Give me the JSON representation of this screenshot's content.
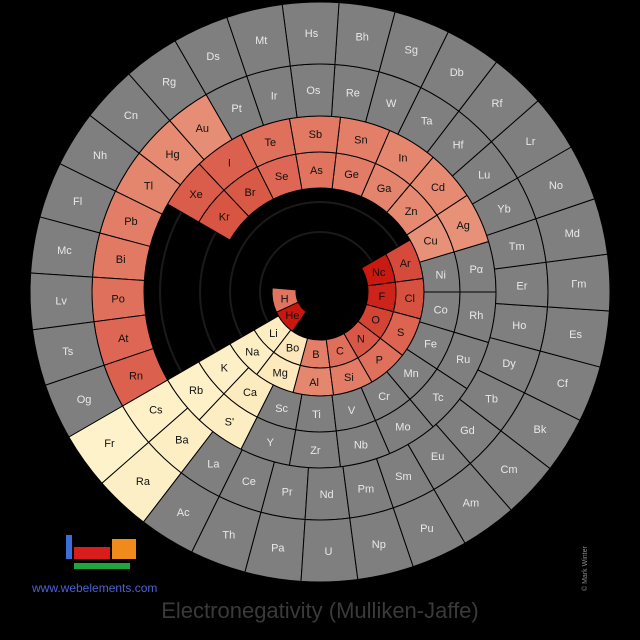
{
  "title": "Electronegativity (Mulliken-Jaffe)",
  "site": "www.webelements.com",
  "copyright": "© Mark Winter",
  "colors": {
    "background": "#000000",
    "no_data": "#7f7f7f",
    "block_s": "#fff3c8",
    "block_d": "#eebc93",
    "high": "#c8140c",
    "low": "#f0b496",
    "ring": "#1a1a1a",
    "link": "#4b63d6"
  },
  "rings": [
    {
      "elements": [
        "H",
        "He"
      ],
      "colored": [
        true,
        true
      ],
      "label_overrides": {}
    },
    {
      "elements": [
        "Li",
        "Be",
        "B",
        "C",
        "N",
        "O",
        "F",
        "Ne"
      ],
      "colored": [
        true,
        true,
        true,
        true,
        true,
        true,
        true,
        true
      ],
      "label_overrides": {
        "Be": "Bo",
        "Ne": "Nc"
      }
    },
    {
      "elements": [
        "Na",
        "Mg",
        "Al",
        "Si",
        "P",
        "S",
        "Cl",
        "Ar"
      ],
      "colored": [
        true,
        true,
        true,
        true,
        true,
        true,
        true,
        true
      ],
      "label_overrides": {}
    },
    {
      "elements": [
        "K",
        "Ca",
        "Sc",
        "Ti",
        "V",
        "Cr",
        "Mn",
        "Fe",
        "Co",
        "Ni",
        "Cu",
        "Zn",
        "Ga",
        "Ge",
        "As",
        "Se",
        "Br",
        "Kr"
      ],
      "colored": [
        true,
        true,
        false,
        false,
        false,
        false,
        false,
        false,
        false,
        false,
        true,
        true,
        true,
        true,
        true,
        true,
        true,
        true
      ],
      "label_overrides": {}
    },
    {
      "elements": [
        "Rb",
        "Sr",
        "Y",
        "Zr",
        "Nb",
        "Mo",
        "Tc",
        "Ru",
        "Rh",
        "Pd",
        "Ag",
        "Cd",
        "In",
        "Sn",
        "Sb",
        "Te",
        "I",
        "Xe"
      ],
      "colored": [
        true,
        true,
        false,
        false,
        false,
        false,
        false,
        false,
        false,
        false,
        true,
        true,
        true,
        true,
        true,
        true,
        true,
        true
      ],
      "label_overrides": {
        "Sr": "S'",
        "Pd": "Pα"
      }
    },
    {
      "elements": [
        "Cs",
        "Ba",
        "La",
        "Ce",
        "Pr",
        "Nd",
        "Pm",
        "Sm",
        "Eu",
        "Gd",
        "Tb",
        "Dy",
        "Ho",
        "Er",
        "Tm",
        "Yb",
        "Lu",
        "Hf",
        "Ta",
        "W",
        "Re",
        "Os",
        "Ir",
        "Pt",
        "Au",
        "Hg",
        "Tl",
        "Pb",
        "Bi",
        "Po",
        "At",
        "Rn"
      ],
      "colored": [
        true,
        true,
        false,
        false,
        false,
        false,
        false,
        false,
        false,
        false,
        false,
        false,
        false,
        false,
        false,
        false,
        false,
        false,
        false,
        false,
        false,
        false,
        false,
        false,
        true,
        true,
        true,
        true,
        true,
        true,
        true,
        true
      ],
      "label_overrides": {}
    },
    {
      "elements": [
        "Fr",
        "Ra",
        "Ac",
        "Th",
        "Pa",
        "U",
        "Np",
        "Pu",
        "Am",
        "Cm",
        "Bk",
        "Cf",
        "Es",
        "Fm",
        "Md",
        "No",
        "Lr",
        "Rf",
        "Db",
        "Sg",
        "Bh",
        "Hs",
        "Mt",
        "Ds",
        "Rg",
        "Cn",
        "Nh",
        "Fl",
        "Mc",
        "Lv",
        "Ts",
        "Og"
      ],
      "colored": [
        true,
        true,
        false,
        false,
        false,
        false,
        false,
        false,
        false,
        false,
        false,
        false,
        false,
        false,
        false,
        false,
        false,
        false,
        false,
        false,
        false,
        false,
        false,
        false,
        false,
        false,
        false,
        false,
        false,
        false,
        false,
        false
      ],
      "label_overrides": {
        "Fm": "Γm",
        "Lr": "Lr",
        "Fl": "Fl"
      }
    }
  ],
  "values": {
    "H": 0.4,
    "He": 0.98,
    "Li": 0.13,
    "Be": 0.2,
    "B": 0.33,
    "C": 0.43,
    "N": 0.58,
    "O": 0.7,
    "F": 0.9,
    "Ne": 0.97,
    "Na": 0.12,
    "Mg": 0.18,
    "Al": 0.28,
    "Si": 0.35,
    "P": 0.42,
    "S": 0.5,
    "Cl": 0.62,
    "Ar": 0.66,
    "K": 0.1,
    "Ca": 0.15,
    "Cu": 0.22,
    "Zn": 0.27,
    "Ga": 0.3,
    "Ge": 0.35,
    "As": 0.4,
    "Se": 0.48,
    "Br": 0.57,
    "Kr": 0.6,
    "Rb": 0.09,
    "Sr": 0.13,
    "Ag": 0.22,
    "Cd": 0.26,
    "In": 0.28,
    "Sn": 0.33,
    "Sb": 0.37,
    "Te": 0.42,
    "I": 0.52,
    "Xe": 0.55,
    "Cs": 0.08,
    "Ba": 0.12,
    "Au": 0.24,
    "Hg": 0.26,
    "Tl": 0.29,
    "Pb": 0.34,
    "Bi": 0.37,
    "Po": 0.42,
    "At": 0.48,
    "Rn": 0.52,
    "Fr": 0.07,
    "Ra": 0.11
  },
  "legend_logo": {
    "blocks": [
      {
        "name": "s-block",
        "color": "#3a6ed8"
      },
      {
        "name": "p-block",
        "color": "#f08a1a"
      },
      {
        "name": "d-block",
        "color": "#d91c1c"
      },
      {
        "name": "f-block",
        "color": "#1fa53a"
      }
    ]
  }
}
